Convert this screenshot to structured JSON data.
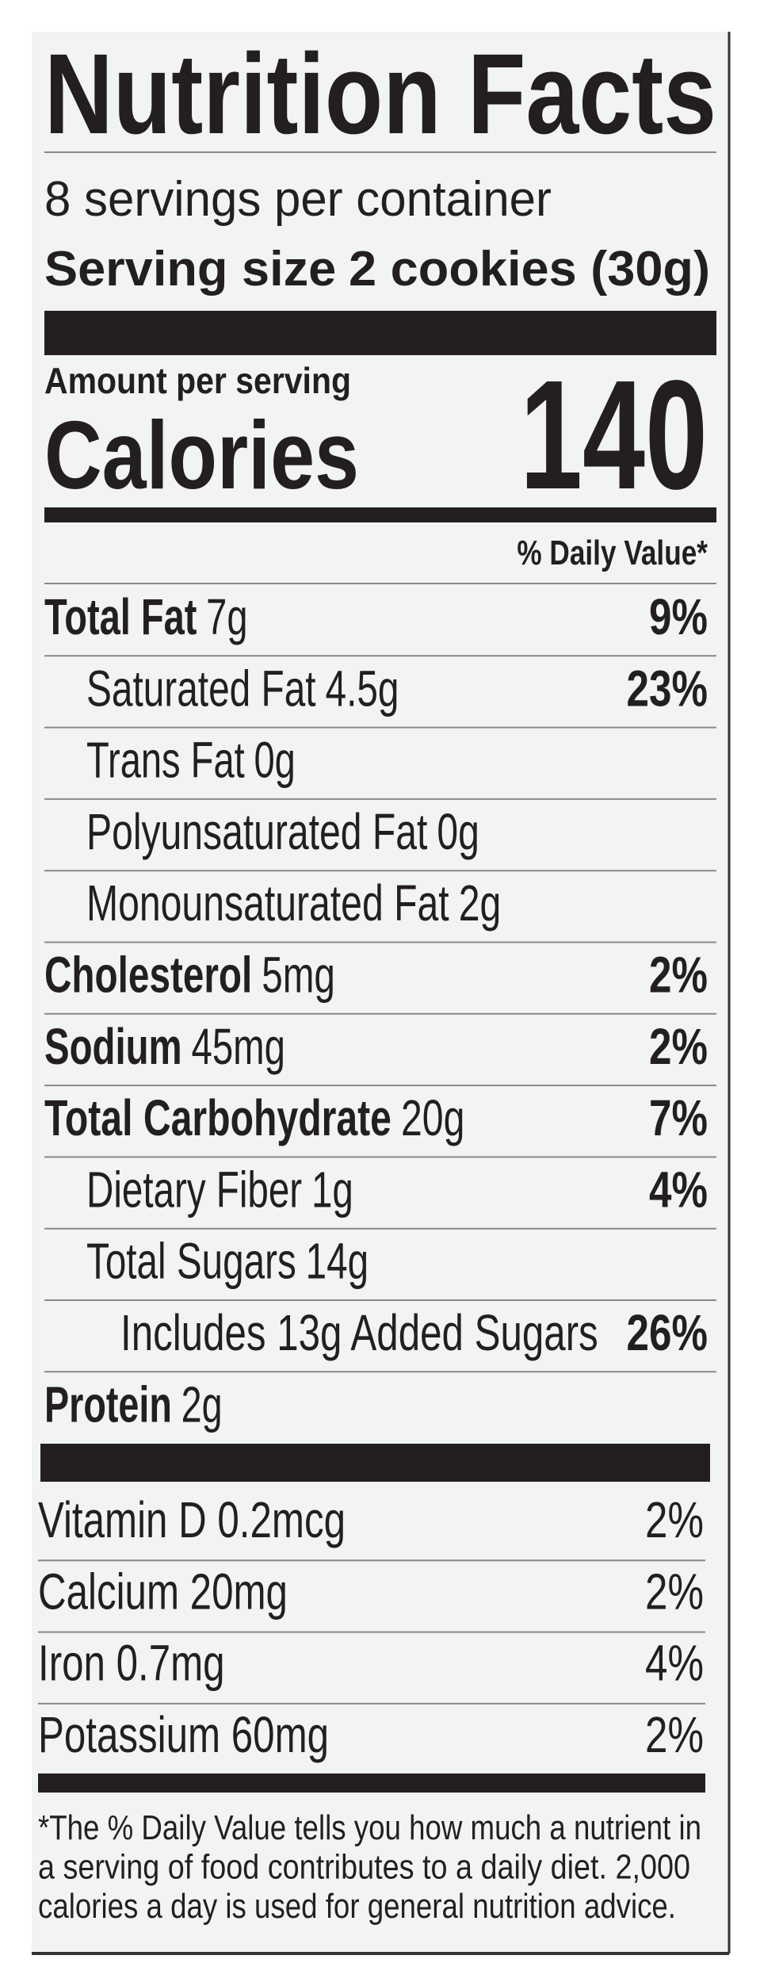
{
  "header": {
    "title": "Nutrition Facts",
    "servings": "8 servings per container",
    "serving_size_label": "Serving size",
    "serving_size_value": "2 cookies (30g)"
  },
  "calories": {
    "amount_per_serving": "Amount per serving",
    "label": "Calories",
    "value": 140
  },
  "daily_value_header": "% Daily Value*",
  "nutrients": [
    {
      "name": "Total Fat",
      "amount": "7g",
      "dv": "9%",
      "sub": [
        {
          "name": "Saturated Fat",
          "amount": "4.5g",
          "dv": "23%"
        },
        {
          "name": "Trans Fat",
          "amount": "0g"
        },
        {
          "name": "Polyunsaturated Fat",
          "amount": "0g"
        },
        {
          "name": "Monounsaturated Fat",
          "amount": "2g"
        }
      ]
    },
    {
      "name": "Cholesterol",
      "amount": "5mg",
      "dv": "2%"
    },
    {
      "name": "Sodium",
      "amount": "45mg",
      "dv": "2%"
    },
    {
      "name": "Total Carbohydrate",
      "amount": "20g",
      "dv": "7%",
      "sub": [
        {
          "name": "Dietary Fiber",
          "amount": "1g",
          "dv": "4%"
        },
        {
          "name": "Total Sugars",
          "amount": "14g",
          "sub": [
            {
              "name": "Includes 13g Added Sugars",
              "dv": "26%"
            }
          ]
        }
      ]
    },
    {
      "name": "Protein",
      "amount": "2g"
    }
  ],
  "vitamins": [
    {
      "name": "Vitamin D 0.2mcg",
      "dv": "2%"
    },
    {
      "name": "Calcium 20mg",
      "dv": "2%"
    },
    {
      "name": "Iron 0.7mg",
      "dv": "4%"
    },
    {
      "name": "Potassium 60mg",
      "dv": "2%"
    }
  ],
  "footnote": [
    "*The % Daily Value tells you how much a nutrient in",
    "a serving of food contributes to a daily diet. 2,000",
    "calories a day is used for general nutrition advice."
  ]
}
